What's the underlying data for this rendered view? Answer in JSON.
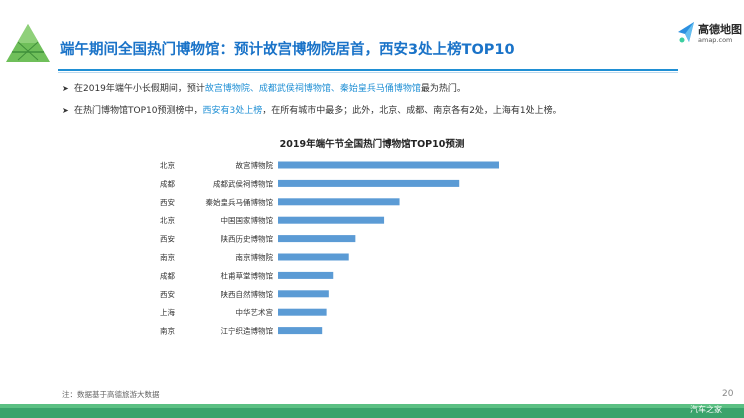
{
  "header": {
    "title": "端午期间全国热门博物馆：预计故宫博物院居首，西安3处上榜TOP10"
  },
  "logo": {
    "name": "高德地图",
    "sub": "amap.com"
  },
  "bullets": [
    {
      "prefix": "在2019年端午小长假期间，预计",
      "highlight": "故宫博物院、成都武侯祠博物馆、秦始皇兵马俑博物馆",
      "suffix": "最为热门。"
    },
    {
      "prefix": "在热门博物馆TOP10预测榜中，",
      "highlight": "西安有3处上榜",
      "suffix": "，在所有城市中最多；此外，北京、成都、南京各有2处，上海有1处上榜。"
    }
  ],
  "chart_data": {
    "type": "bar",
    "orientation": "horizontal",
    "title": "2019年端午节全国热门博物馆TOP10预测",
    "categories": [
      "故宫博物院",
      "成都武侯祠博物馆",
      "秦始皇兵马俑博物馆",
      "中国国家博物馆",
      "陕西历史博物馆",
      "南京博物院",
      "杜甫草堂博物馆",
      "陕西自然博物馆",
      "中华艺术宫",
      "江宁织造博物馆"
    ],
    "cities": [
      "北京",
      "成都",
      "西安",
      "北京",
      "西安",
      "南京",
      "成都",
      "西安",
      "上海",
      "南京"
    ],
    "values": [
      100,
      82,
      55,
      48,
      35,
      32,
      25,
      23,
      22,
      20
    ],
    "value_labels_shown": false,
    "axis_shown": false,
    "grid": false,
    "bar_color": "#5b9bd5"
  },
  "footnote": "注：数据基于高德旅游大数据",
  "page_number": "20",
  "watermark": "汽车之家",
  "colors": {
    "accent": "#1f8fd4",
    "title": "#1a73c8",
    "bar": "#5b9bd5",
    "bottom_bar": "#3aa36b"
  }
}
